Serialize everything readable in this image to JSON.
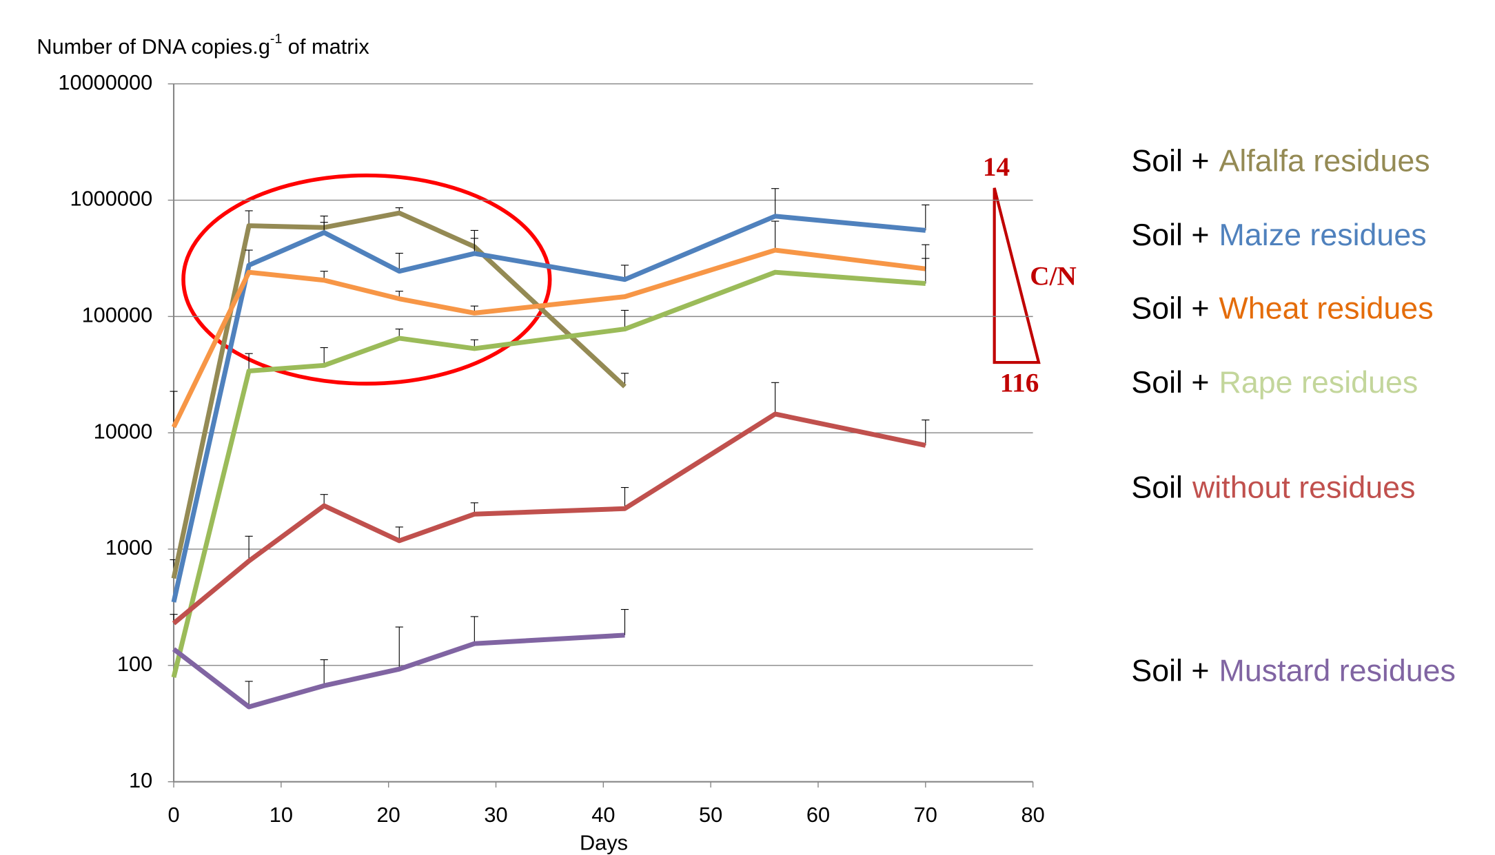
{
  "chart_data": {
    "type": "line",
    "y_label": [
      "Number of DNA copies.g",
      "-1",
      "of matrix"
    ],
    "x_label": "Days",
    "log_y": true,
    "grid": true,
    "xlim": [
      0,
      80
    ],
    "xticks": [
      0,
      10,
      20,
      30,
      40,
      50,
      60,
      70,
      80
    ],
    "ylim": [
      10,
      10000000
    ],
    "yticks": [
      10,
      100,
      1000,
      10000,
      100000,
      1000000,
      10000000
    ],
    "x": [
      0,
      7,
      14,
      21,
      28,
      42,
      56,
      70
    ],
    "series": [
      {
        "prefix": "Soil +",
        "name": "Alfalfa residues",
        "color": "#948a54",
        "legend_color": "#948a54",
        "values": [
          560,
          603000,
          582000,
          776000,
          398000,
          25000,
          null,
          null
        ],
        "errors": [
          250,
          207000,
          148000,
          84000,
          152000,
          7500,
          null,
          null
        ]
      },
      {
        "prefix": "Soil +",
        "name": "Maize residues",
        "color": "#4f81bd",
        "legend_color": "#4f81bd",
        "values": [
          350,
          276000,
          527000,
          245000,
          348000,
          208000,
          728000,
          550000
        ],
        "errors": [
          null,
          96000,
          118000,
          105000,
          122000,
          68000,
          530000,
          360000
        ]
      },
      {
        "prefix": "Soil +",
        "name": "Wheat residues",
        "color": "#f79646",
        "legend_color": "#e46c0a",
        "values": [
          11200,
          240000,
          205000,
          142000,
          107000,
          148000,
          372000,
          257000
        ],
        "errors": [
          11500,
          null,
          40000,
          23000,
          16000,
          null,
          288000,
          157000
        ]
      },
      {
        "prefix": "Soil +",
        "name": "Rape residues",
        "color": "#9bbb59",
        "legend_color": "#c3d69b",
        "values": [
          79,
          34000,
          38000,
          65000,
          53000,
          78000,
          240000,
          192000
        ],
        "errors": [
          null,
          14000,
          16000,
          13000,
          10000,
          35000,
          null,
          124000
        ]
      },
      {
        "prefix": "Soil",
        "name": "without residues",
        "color": "#c0504d",
        "legend_color": "#c0504d",
        "values": [
          230,
          790,
          2360,
          1180,
          2000,
          2230,
          14500,
          7800
        ],
        "errors": [
          45,
          500,
          590,
          370,
          500,
          1160,
          12500,
          5100
        ]
      },
      {
        "prefix": "Soil +",
        "name": "Mustard residues",
        "color": "#8064a2",
        "legend_color": "#8064a2",
        "values": [
          138,
          44,
          67,
          93,
          154,
          182,
          null,
          null
        ],
        "errors": [
          null,
          29,
          45,
          121,
          109,
          121,
          null,
          null
        ]
      }
    ],
    "annotations": [
      "14",
      "C/N",
      "116"
    ]
  }
}
